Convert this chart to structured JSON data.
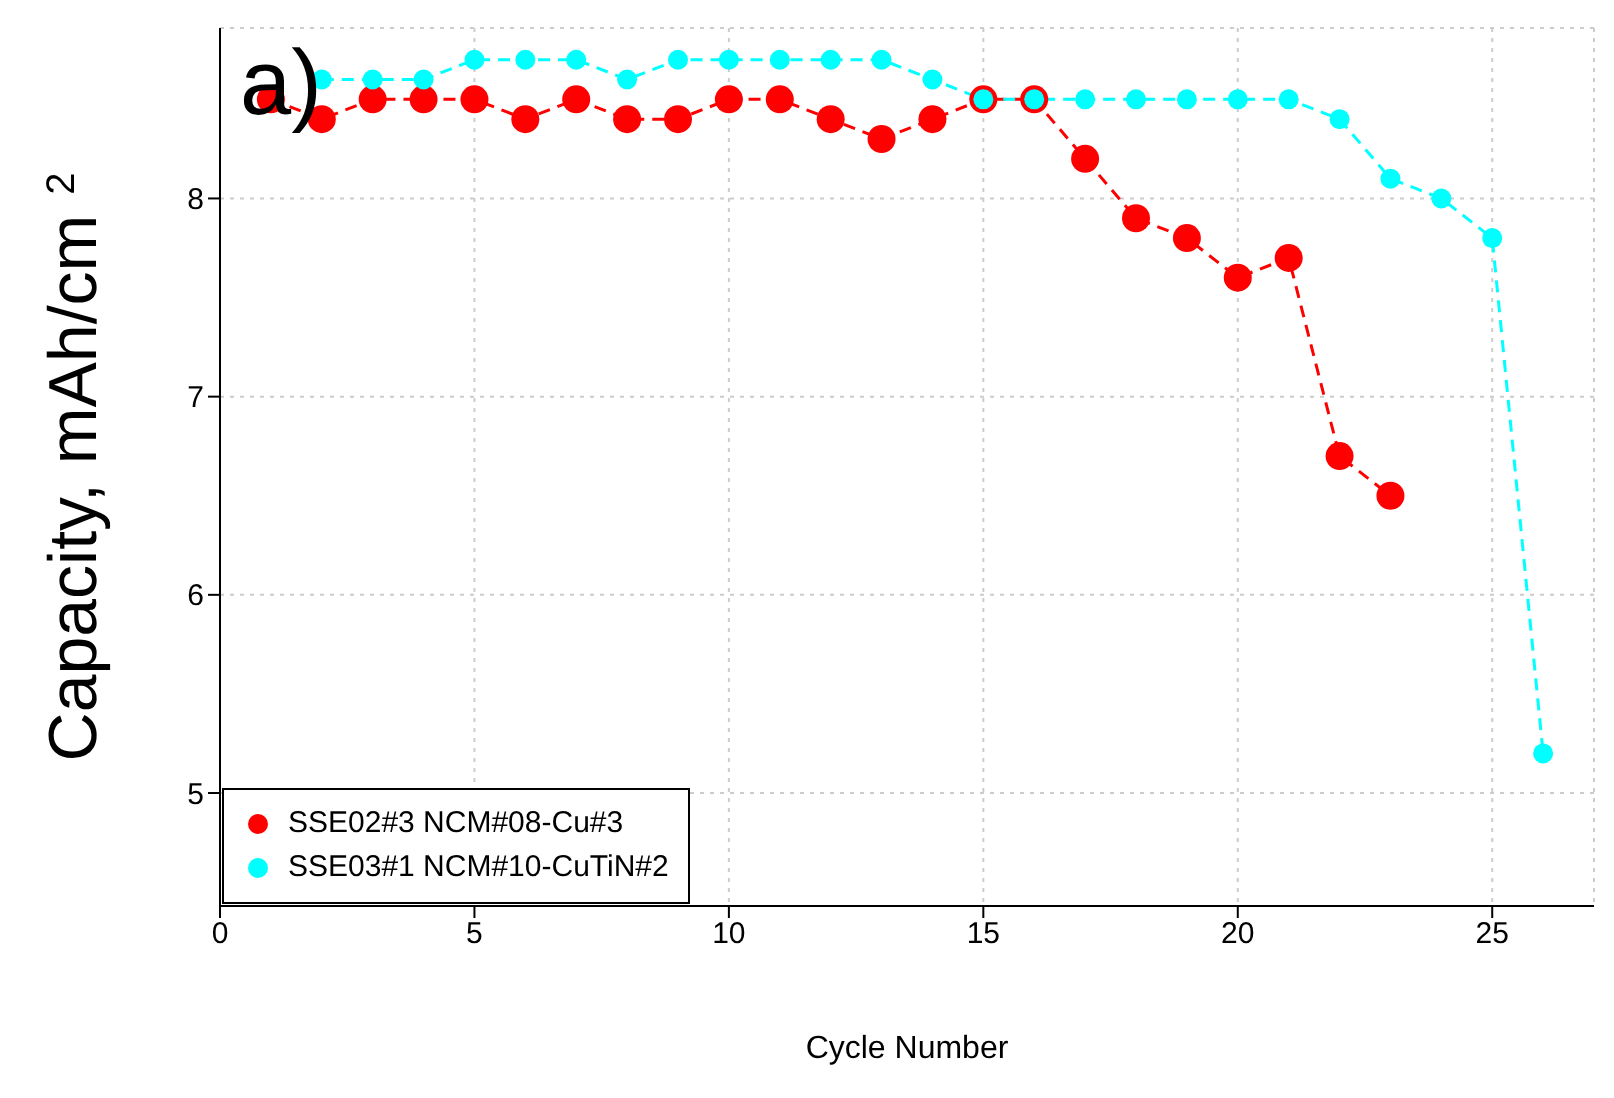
{
  "chart_data": {
    "type": "line",
    "xlabel": "Cycle Number",
    "ylabel": "Capacity, mAh/cm$^{2}$",
    "annotations": [
      "a)"
    ],
    "x": [
      1,
      2,
      3,
      4,
      5,
      6,
      7,
      8,
      9,
      10,
      11,
      12,
      13,
      14,
      15,
      16,
      17,
      18,
      19,
      20,
      21,
      22,
      23,
      24,
      25,
      26
    ],
    "series": [
      {
        "name": "SSE02#3 NCM#08-Cu#3",
        "color": "#ff0000",
        "values": [
          8.5,
          8.4,
          8.5,
          8.5,
          8.5,
          8.4,
          8.5,
          8.4,
          8.4,
          8.5,
          8.5,
          8.4,
          8.3,
          8.4,
          8.5,
          8.5,
          8.2,
          7.9,
          7.8,
          7.6,
          7.7,
          6.7,
          6.5,
          null,
          null,
          null
        ]
      },
      {
        "name": "SSE03#1 NCM#10-CuTiN#2",
        "color": "#00ffff",
        "values": [
          null,
          8.6,
          8.6,
          8.6,
          8.7,
          8.7,
          8.7,
          8.6,
          8.7,
          8.7,
          8.7,
          8.7,
          8.7,
          8.6,
          8.5,
          8.5,
          8.5,
          8.5,
          8.5,
          8.5,
          8.5,
          8.4,
          8.1,
          8.0,
          7.8,
          5.2
        ]
      }
    ],
    "xlim": [
      0,
      27
    ],
    "xticks": [
      0,
      5,
      10,
      15,
      20,
      25
    ],
    "ylim": [
      4.43,
      8.86
    ],
    "yticks": [
      5,
      6,
      7,
      8
    ],
    "grid": true,
    "legend": "bottom left",
    "marker": "circle",
    "line_style": "dashed"
  }
}
